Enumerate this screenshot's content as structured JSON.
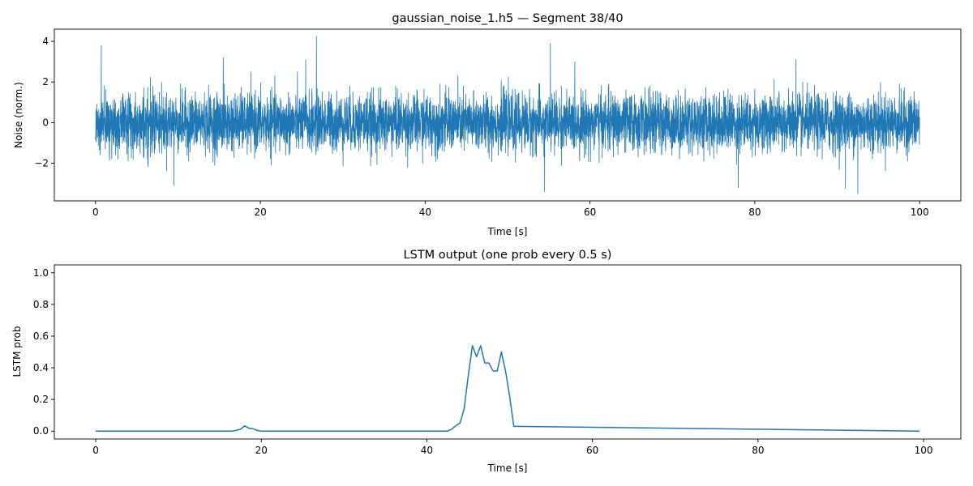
{
  "chart_data": [
    {
      "type": "line",
      "title": "gaussian_noise_1.h5 — Segment 38/40",
      "xlabel": "Time [s]",
      "ylabel": "Noise (norm.)",
      "xlim": [
        -5,
        105
      ],
      "ylim": [
        -3.85,
        4.6
      ],
      "xticks": [
        0,
        20,
        40,
        60,
        80,
        100
      ],
      "xtick_labels": [
        "0",
        "20",
        "40",
        "60",
        "80",
        "100"
      ],
      "yticks": [
        4,
        2,
        0,
        -2
      ],
      "ytick_labels": [
        "4",
        "2",
        "0",
        "−2"
      ],
      "grid": false,
      "series": [
        {
          "name": "noise",
          "color": "#1f77b4",
          "description_values": "dense gaussian noise, mean 0, std ~0.7, spanning t = 0 to 100 s",
          "x_start": 0,
          "x_end": 100,
          "mean": 0,
          "std": 0.7,
          "samples": 6000,
          "notable_peaks": [
            {
              "t": 0.7,
              "v": 3.8
            },
            {
              "t": 26.8,
              "v": 4.25
            },
            {
              "t": 55.2,
              "v": 3.9
            },
            {
              "t": 25.5,
              "v": 3.1
            },
            {
              "t": 85.0,
              "v": 3.1
            },
            {
              "t": 15.5,
              "v": 3.2
            },
            {
              "t": 9.5,
              "v": -3.1
            },
            {
              "t": 54.5,
              "v": -3.4
            },
            {
              "t": 92.5,
              "v": -3.5
            },
            {
              "t": 78.0,
              "v": -3.2
            },
            {
              "t": 91.0,
              "v": -3.25
            }
          ]
        }
      ]
    },
    {
      "type": "line",
      "title": "LSTM output (one prob every 0.5 s)",
      "xlabel": "Time [s]",
      "ylabel": "LSTM prob",
      "xlim": [
        -5,
        104.5
      ],
      "ylim": [
        -0.05,
        1.05
      ],
      "xticks": [
        0,
        20,
        40,
        60,
        80,
        100
      ],
      "xtick_labels": [
        "0",
        "20",
        "40",
        "60",
        "80",
        "100"
      ],
      "yticks": [
        0.0,
        0.2,
        0.4,
        0.6,
        0.8,
        1.0
      ],
      "ytick_labels": [
        "0.0",
        "0.2",
        "0.4",
        "0.6",
        "0.8",
        "1.0"
      ],
      "grid": false,
      "series": [
        {
          "name": "LSTM prob",
          "color": "#1f77b4",
          "x": [
            0,
            16.5,
            17,
            17.5,
            18,
            18.5,
            19,
            19.5,
            20,
            42.5,
            43,
            43.5,
            44,
            44.5,
            45,
            45.5,
            46,
            46.5,
            47,
            47.5,
            48,
            48.5,
            49,
            49.5,
            50,
            50.5,
            99.5
          ],
          "y": [
            0,
            0,
            0.005,
            0.012,
            0.033,
            0.018,
            0.015,
            0.004,
            0,
            0,
            0.012,
            0.035,
            0.05,
            0.14,
            0.35,
            0.54,
            0.47,
            0.54,
            0.43,
            0.43,
            0.38,
            0.38,
            0.5,
            0.38,
            0.22,
            0.03,
            0
          ]
        }
      ]
    }
  ]
}
